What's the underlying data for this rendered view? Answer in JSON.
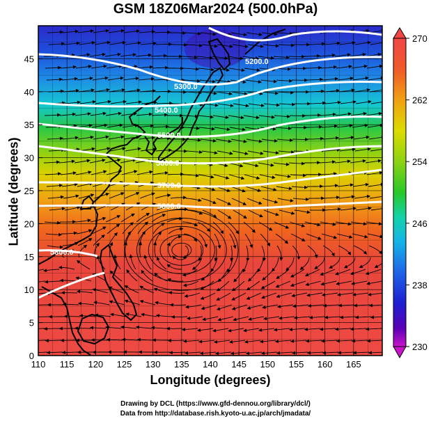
{
  "title": "GSM 18Z06Mar2024 (500.0hPa)",
  "xlabel": "Longitude (degrees)",
  "ylabel": "Latitude  (degrees)",
  "credits": [
    "Drawing by DCL (https://www.gfd-dennou.org/library/dcl/)",
    "Data from http://database.rish.kyoto-u.ac.jp/arch/jmadata/"
  ],
  "map": {
    "lon_range": [
      110,
      170
    ],
    "lat_range": [
      0,
      50
    ],
    "x_ticks": [
      "110",
      "115",
      "120",
      "125",
      "130",
      "135",
      "140",
      "145",
      "150",
      "155",
      "160",
      "165"
    ],
    "y_ticks": [
      "0",
      "5",
      "10",
      "15",
      "20",
      "25",
      "30",
      "35",
      "40",
      "45"
    ],
    "colorbar": {
      "range": [
        230,
        270
      ],
      "tick_labels": [
        "270",
        "262",
        "254",
        "246",
        "238",
        "230"
      ],
      "colors": [
        "#c814c8",
        "#5a00b4",
        "#1e1ed2",
        "#1e64e6",
        "#14b4e6",
        "#14d2aa",
        "#28c828",
        "#8cd214",
        "#dcdc00",
        "#f0b400",
        "#f08c14",
        "#f05a28",
        "#e63c3c",
        "#f04646"
      ]
    },
    "contour_labels": [
      "5200.0",
      "5300.0",
      "5400.0",
      "5500.0",
      "5600.0",
      "5700.0",
      "5800.0",
      "5800.0"
    ],
    "vortex_center": {
      "lon": 135,
      "lat": 16
    }
  }
}
